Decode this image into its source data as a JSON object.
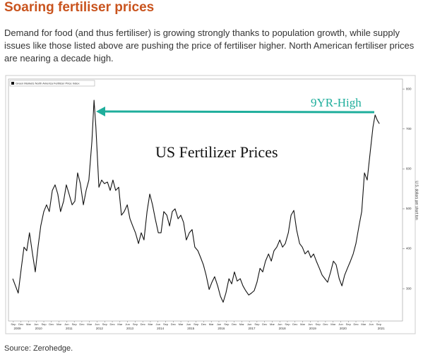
{
  "header": {
    "title": "Soaring fertiliser prices"
  },
  "body": {
    "paragraph": "Demand for food (and thus fertiliser) is growing strongly thanks to population growth, while supply issues like those listed above are pushing the price of fertiliser higher. North American fertiliser prices are nearing a decade high."
  },
  "chart_data": {
    "type": "line",
    "title": "US Fertilizer Prices",
    "annotation": {
      "text": "9YR-High",
      "color": "#1fae9c"
    },
    "y_label": "U.S. dollars per short ton",
    "x": [
      2009.65,
      2009.74,
      2009.83,
      2009.93,
      2010.02,
      2010.11,
      2010.2,
      2010.3,
      2010.39,
      2010.48,
      2010.57,
      2010.67,
      2010.76,
      2010.85,
      2010.95,
      2011.04,
      2011.13,
      2011.22,
      2011.32,
      2011.41,
      2011.5,
      2011.6,
      2011.69,
      2011.78,
      2011.87,
      2011.97,
      2012.06,
      2012.15,
      2012.25,
      2012.32,
      2012.38,
      2012.48,
      2012.57,
      2012.66,
      2012.76,
      2012.85,
      2012.94,
      2013.03,
      2013.13,
      2013.22,
      2013.31,
      2013.41,
      2013.5,
      2013.59,
      2013.68,
      2013.78,
      2013.87,
      2013.96,
      2014.06,
      2014.15,
      2014.24,
      2014.33,
      2014.43,
      2014.52,
      2014.61,
      2014.71,
      2014.8,
      2014.89,
      2014.98,
      2015.08,
      2015.17,
      2015.26,
      2015.35,
      2015.45,
      2015.54,
      2015.63,
      2015.73,
      2015.82,
      2015.91,
      2016.0,
      2016.1,
      2016.19,
      2016.28,
      2016.38,
      2016.47,
      2016.56,
      2016.65,
      2016.75,
      2016.84,
      2016.93,
      2017.02,
      2017.12,
      2017.21,
      2017.3,
      2017.4,
      2017.49,
      2017.58,
      2017.67,
      2017.77,
      2017.86,
      2017.95,
      2018.05,
      2018.14,
      2018.23,
      2018.32,
      2018.42,
      2018.51,
      2018.6,
      2018.7,
      2018.79,
      2018.88,
      2018.97,
      2019.07,
      2019.16,
      2019.25,
      2019.35,
      2019.44,
      2019.53,
      2019.62,
      2019.72,
      2019.81,
      2019.9,
      2019.99,
      2020.09,
      2020.18,
      2020.27,
      2020.37,
      2020.46,
      2020.55,
      2020.64,
      2020.74,
      2020.83,
      2020.92,
      2021.02,
      2021.11,
      2021.2,
      2021.29,
      2021.39,
      2021.48,
      2021.55,
      2021.62,
      2021.69
    ],
    "series": [
      {
        "name": "Green Markets North America Fertilizer Price Index",
        "color": "#111111",
        "values": [
          325,
          307,
          289,
          351,
          404,
          395,
          440,
          387,
          342,
          404,
          457,
          493,
          510,
          493,
          546,
          560,
          537,
          493,
          519,
          560,
          537,
          510,
          519,
          590,
          563,
          510,
          546,
          572,
          669,
          772,
          705,
          554,
          572,
          563,
          567,
          546,
          572,
          546,
          554,
          484,
          493,
          510,
          475,
          457,
          440,
          413,
          440,
          422,
          493,
          537,
          510,
          475,
          440,
          440,
          493,
          484,
          457,
          493,
          500,
          475,
          484,
          466,
          422,
          440,
          448,
          404,
          395,
          378,
          360,
          334,
          298,
          316,
          330,
          307,
          281,
          266,
          289,
          325,
          312,
          342,
          319,
          325,
          307,
          295,
          284,
          289,
          295,
          316,
          351,
          342,
          369,
          387,
          369,
          395,
          404,
          422,
          404,
          413,
          440,
          484,
          496,
          448,
          413,
          404,
          387,
          395,
          378,
          387,
          369,
          351,
          334,
          325,
          316,
          342,
          369,
          360,
          325,
          307,
          334,
          351,
          369,
          387,
          413,
          457,
          493,
          590,
          572,
          643,
          705,
          735,
          722,
          713
        ]
      }
    ],
    "xlim": [
      2009.51,
      2022.45
    ],
    "ylim": [
      219,
      825
    ],
    "yticks": [
      300,
      400,
      500,
      600,
      700,
      800
    ],
    "xticks": [
      {
        "value": 2009.67,
        "label": "Sep"
      },
      {
        "value": 2009.92,
        "label": "Dec"
      },
      {
        "value": 2010.17,
        "label": "Mar"
      },
      {
        "value": 2010.42,
        "label": "Jun"
      },
      {
        "value": 2010.67,
        "label": "Sep"
      },
      {
        "value": 2010.92,
        "label": "Dec"
      },
      {
        "value": 2011.17,
        "label": "Mar"
      },
      {
        "value": 2011.42,
        "label": "Jun"
      },
      {
        "value": 2011.67,
        "label": "Sep"
      },
      {
        "value": 2011.92,
        "label": "Dec"
      },
      {
        "value": 2012.17,
        "label": "Mar"
      },
      {
        "value": 2012.42,
        "label": "Jun"
      },
      {
        "value": 2012.67,
        "label": "Sep"
      },
      {
        "value": 2012.92,
        "label": "Dec"
      },
      {
        "value": 2013.17,
        "label": "Mar"
      },
      {
        "value": 2013.42,
        "label": "Jun"
      },
      {
        "value": 2013.67,
        "label": "Sep"
      },
      {
        "value": 2013.92,
        "label": "Dec"
      },
      {
        "value": 2014.17,
        "label": "Mar"
      },
      {
        "value": 2014.42,
        "label": "Jun"
      },
      {
        "value": 2014.67,
        "label": "Sep"
      },
      {
        "value": 2014.92,
        "label": "Dec"
      },
      {
        "value": 2015.17,
        "label": "Mar"
      },
      {
        "value": 2015.42,
        "label": "Jun"
      },
      {
        "value": 2015.67,
        "label": "Sep"
      },
      {
        "value": 2015.92,
        "label": "Dec"
      },
      {
        "value": 2016.17,
        "label": "Mar"
      },
      {
        "value": 2016.42,
        "label": "Jun"
      },
      {
        "value": 2016.67,
        "label": "Sep"
      },
      {
        "value": 2016.92,
        "label": "Dec"
      },
      {
        "value": 2017.17,
        "label": "Mar"
      },
      {
        "value": 2017.42,
        "label": "Jun"
      },
      {
        "value": 2017.67,
        "label": "Sep"
      },
      {
        "value": 2017.92,
        "label": "Dec"
      },
      {
        "value": 2018.17,
        "label": "Mar"
      },
      {
        "value": 2018.42,
        "label": "Jun"
      },
      {
        "value": 2018.67,
        "label": "Sep"
      },
      {
        "value": 2018.92,
        "label": "Dec"
      },
      {
        "value": 2019.17,
        "label": "Mar"
      },
      {
        "value": 2019.42,
        "label": "Jun"
      },
      {
        "value": 2019.67,
        "label": "Sep"
      },
      {
        "value": 2019.92,
        "label": "Dec"
      },
      {
        "value": 2020.17,
        "label": "Mar"
      },
      {
        "value": 2020.42,
        "label": "Jun"
      },
      {
        "value": 2020.67,
        "label": "Sep"
      },
      {
        "value": 2020.92,
        "label": "Dec"
      },
      {
        "value": 2021.17,
        "label": "Mar"
      },
      {
        "value": 2021.42,
        "label": "Jun"
      },
      {
        "value": 2021.67,
        "label": "Sep"
      }
    ],
    "year_labels": [
      {
        "value": 2009.8,
        "label": "2009"
      },
      {
        "value": 2010.5,
        "label": "2010"
      },
      {
        "value": 2011.5,
        "label": "2011"
      },
      {
        "value": 2012.5,
        "label": "2012"
      },
      {
        "value": 2013.5,
        "label": "2013"
      },
      {
        "value": 2014.5,
        "label": "2014"
      },
      {
        "value": 2015.5,
        "label": "2015"
      },
      {
        "value": 2016.5,
        "label": "2016"
      },
      {
        "value": 2017.5,
        "label": "2017"
      },
      {
        "value": 2018.5,
        "label": "2018"
      },
      {
        "value": 2019.5,
        "label": "2019"
      },
      {
        "value": 2020.5,
        "label": "2020"
      },
      {
        "value": 2021.75,
        "label": "2021"
      }
    ]
  },
  "footer": {
    "source": "Source: Zerohedge."
  }
}
